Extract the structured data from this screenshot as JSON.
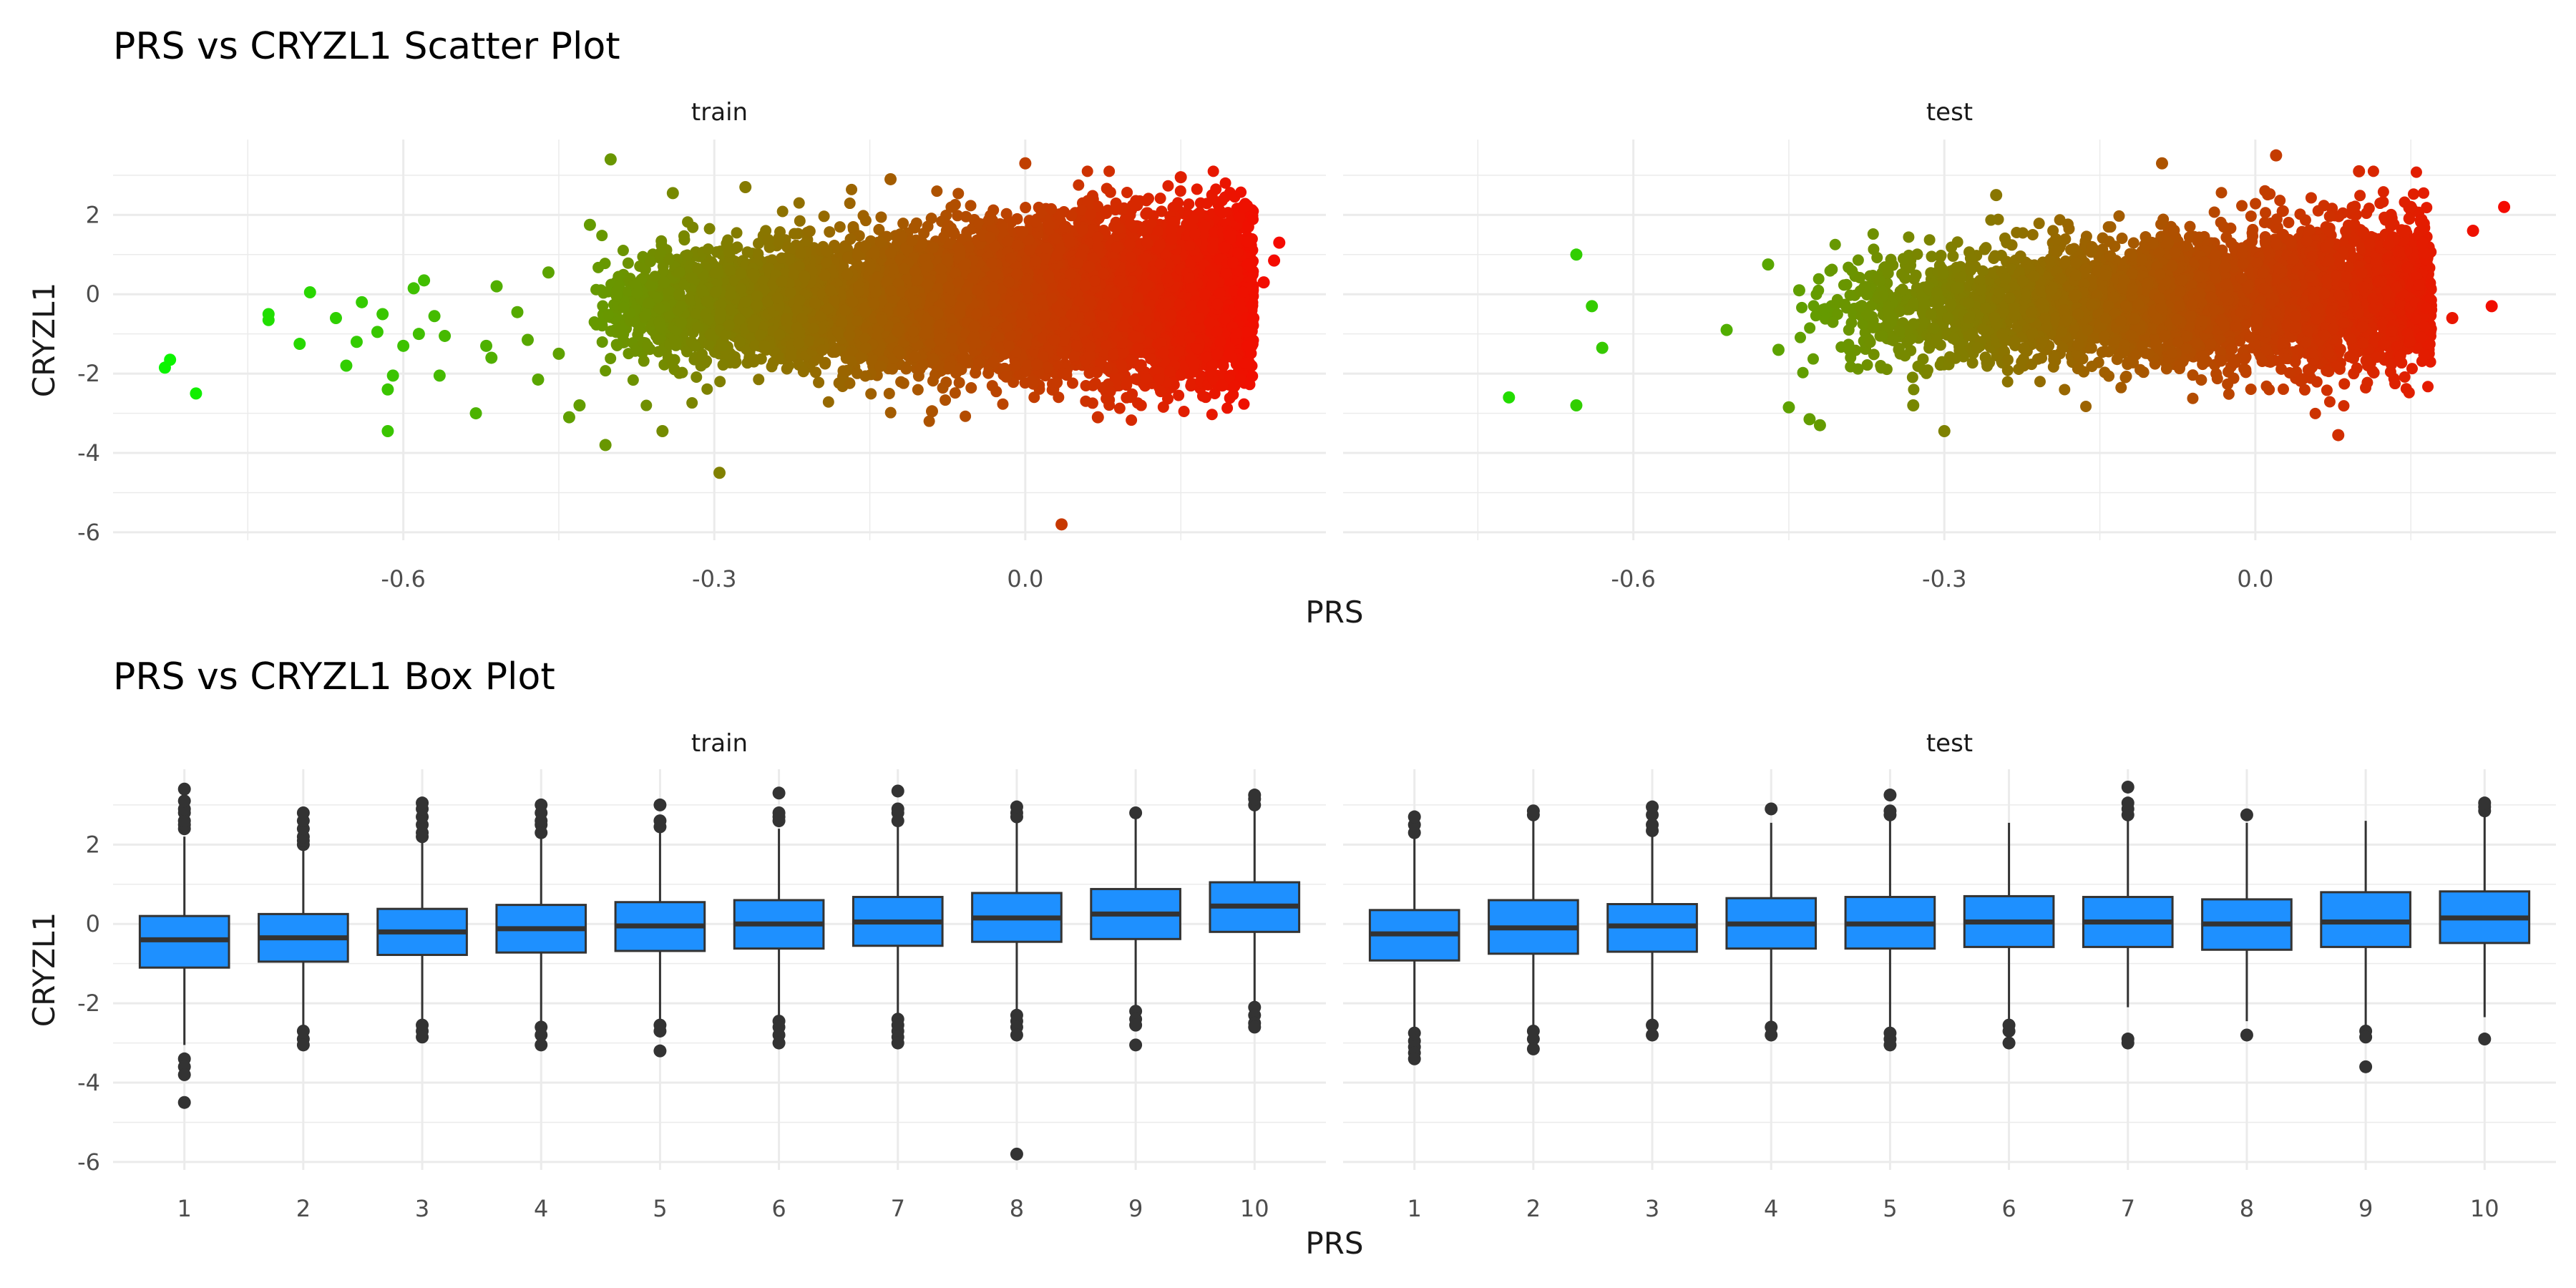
{
  "chart_data": [
    {
      "type": "scatter",
      "title": "PRS vs CRYZL1 Scatter Plot",
      "xlabel": "PRS",
      "ylabel": "CRYZL1",
      "y_ticks": [
        "2",
        "0",
        "-2",
        "-4",
        "-6"
      ],
      "y_tick_values": [
        2,
        0,
        -2,
        -4,
        -6
      ],
      "ylim": [
        -6.2,
        3.9
      ],
      "x_ticks": [
        "-0.6",
        "-0.3",
        "0.0"
      ],
      "x_tick_values": [
        -0.6,
        -0.3,
        0.0
      ],
      "grid": true,
      "color_scale": {
        "low": "#00ff00",
        "high": "#ff0000",
        "mapped_to": "PRS"
      },
      "panels": [
        {
          "name": "train",
          "xlim": [
            -0.88,
            0.29
          ],
          "cloud": {
            "x_range": [
              -0.42,
              0.22
            ],
            "y_sd": 0.95,
            "approx_points": 9000
          },
          "points": [
            {
              "x": -0.83,
              "y": -1.85
            },
            {
              "x": -0.825,
              "y": -1.65
            },
            {
              "x": -0.8,
              "y": -2.5
            },
            {
              "x": -0.73,
              "y": -0.5
            },
            {
              "x": -0.73,
              "y": -0.65
            },
            {
              "x": -0.69,
              "y": 0.05
            },
            {
              "x": -0.7,
              "y": -1.25
            },
            {
              "x": -0.665,
              "y": -0.6
            },
            {
              "x": -0.655,
              "y": -1.8
            },
            {
              "x": -0.645,
              "y": -1.2
            },
            {
              "x": -0.64,
              "y": -0.2
            },
            {
              "x": -0.625,
              "y": -0.95
            },
            {
              "x": -0.62,
              "y": -0.5
            },
            {
              "x": -0.615,
              "y": -2.4
            },
            {
              "x": -0.615,
              "y": -3.45
            },
            {
              "x": -0.61,
              "y": -2.05
            },
            {
              "x": -0.6,
              "y": -1.3
            },
            {
              "x": -0.59,
              "y": 0.15
            },
            {
              "x": -0.58,
              "y": 0.35
            },
            {
              "x": -0.585,
              "y": -1.0
            },
            {
              "x": -0.57,
              "y": -0.55
            },
            {
              "x": -0.56,
              "y": -1.05
            },
            {
              "x": -0.565,
              "y": -2.05
            },
            {
              "x": -0.53,
              "y": -3.0
            },
            {
              "x": -0.52,
              "y": -1.3
            },
            {
              "x": -0.515,
              "y": -1.6
            },
            {
              "x": -0.51,
              "y": 0.2
            },
            {
              "x": -0.49,
              "y": -0.45
            },
            {
              "x": -0.48,
              "y": -1.15
            },
            {
              "x": -0.47,
              "y": -2.15
            },
            {
              "x": -0.46,
              "y": 0.55
            },
            {
              "x": -0.45,
              "y": -1.5
            },
            {
              "x": -0.44,
              "y": -3.1
            },
            {
              "x": -0.43,
              "y": -2.8
            },
            {
              "x": -0.42,
              "y": 1.75
            },
            {
              "x": -0.4,
              "y": 3.4
            },
            {
              "x": -0.405,
              "y": -3.8
            },
            {
              "x": -0.35,
              "y": -3.45
            },
            {
              "x": -0.34,
              "y": 2.55
            },
            {
              "x": -0.295,
              "y": -4.5
            },
            {
              "x": -0.27,
              "y": 2.7
            },
            {
              "x": -0.13,
              "y": 2.9
            },
            {
              "x": -0.09,
              "y": -2.95
            },
            {
              "x": 0.0,
              "y": 3.3
            },
            {
              "x": 0.035,
              "y": -5.8
            },
            {
              "x": 0.07,
              "y": -3.1
            },
            {
              "x": 0.15,
              "y": 2.95
            },
            {
              "x": 0.19,
              "y": -2.3
            },
            {
              "x": 0.21,
              "y": 2.2
            },
            {
              "x": 0.215,
              "y": -1.3
            },
            {
              "x": 0.23,
              "y": 0.3
            },
            {
              "x": 0.24,
              "y": 0.85
            },
            {
              "x": 0.245,
              "y": 1.3
            },
            {
              "x": 0.22,
              "y": -0.6
            }
          ]
        },
        {
          "name": "test",
          "xlim": [
            -0.88,
            0.29
          ],
          "cloud": {
            "x_range": [
              -0.44,
              0.17
            ],
            "y_sd": 0.9,
            "approx_points": 4000
          },
          "points": [
            {
              "x": -0.72,
              "y": -2.6
            },
            {
              "x": -0.655,
              "y": 1.0
            },
            {
              "x": -0.655,
              "y": -2.8
            },
            {
              "x": -0.64,
              "y": -0.3
            },
            {
              "x": -0.63,
              "y": -1.35
            },
            {
              "x": -0.51,
              "y": -0.9
            },
            {
              "x": -0.47,
              "y": 0.75
            },
            {
              "x": -0.46,
              "y": -1.4
            },
            {
              "x": -0.45,
              "y": -2.85
            },
            {
              "x": -0.44,
              "y": 0.1
            },
            {
              "x": -0.43,
              "y": -3.15
            },
            {
              "x": -0.42,
              "y": -3.3
            },
            {
              "x": -0.33,
              "y": -2.8
            },
            {
              "x": -0.3,
              "y": -3.45
            },
            {
              "x": -0.25,
              "y": 2.5
            },
            {
              "x": -0.09,
              "y": 3.3
            },
            {
              "x": 0.02,
              "y": 3.5
            },
            {
              "x": 0.08,
              "y": -3.55
            },
            {
              "x": 0.1,
              "y": 3.1
            },
            {
              "x": 0.15,
              "y": 2.2
            },
            {
              "x": 0.19,
              "y": -0.6
            },
            {
              "x": 0.21,
              "y": 1.6
            },
            {
              "x": 0.228,
              "y": -0.3
            },
            {
              "x": 0.24,
              "y": 2.2
            }
          ]
        }
      ]
    },
    {
      "type": "box",
      "title": "PRS vs CRYZL1 Box Plot",
      "xlabel": "PRS",
      "ylabel": "CRYZL1",
      "categories": [
        "1",
        "2",
        "3",
        "4",
        "5",
        "6",
        "7",
        "8",
        "9",
        "10"
      ],
      "y_ticks": [
        "2",
        "0",
        "-2",
        "-4",
        "-6"
      ],
      "y_tick_values": [
        2,
        0,
        -2,
        -4,
        -6
      ],
      "ylim": [
        -6.2,
        3.9
      ],
      "grid": true,
      "box_color": "#1e90ff",
      "line_color": "#333333",
      "panels": [
        {
          "name": "train",
          "boxes": [
            {
              "q1": -1.1,
              "median": -0.4,
              "q3": 0.2,
              "low": -3.05,
              "high": 2.2,
              "outliers": [
                2.4,
                2.5,
                2.6,
                2.8,
                2.9,
                3.1,
                3.4,
                -3.4,
                -3.6,
                -3.8,
                -4.5
              ]
            },
            {
              "q1": -0.95,
              "median": -0.35,
              "q3": 0.25,
              "low": -2.6,
              "high": 1.9,
              "outliers": [
                2.0,
                2.1,
                2.2,
                2.4,
                2.6,
                2.8,
                -2.7,
                -2.9,
                -3.05
              ]
            },
            {
              "q1": -0.78,
              "median": -0.2,
              "q3": 0.38,
              "low": -2.45,
              "high": 2.1,
              "outliers": [
                2.2,
                2.3,
                2.5,
                2.7,
                2.9,
                3.05,
                -2.55,
                -2.7,
                -2.85
              ]
            },
            {
              "q1": -0.72,
              "median": -0.12,
              "q3": 0.48,
              "low": -2.5,
              "high": 2.2,
              "outliers": [
                2.3,
                2.5,
                2.6,
                2.8,
                3.0,
                -2.6,
                -2.8,
                -3.05
              ]
            },
            {
              "q1": -0.68,
              "median": -0.05,
              "q3": 0.55,
              "low": -2.45,
              "high": 2.3,
              "outliers": [
                2.45,
                2.6,
                3.0,
                -2.55,
                -2.7,
                -3.2
              ]
            },
            {
              "q1": -0.62,
              "median": 0.0,
              "q3": 0.6,
              "low": -2.4,
              "high": 2.4,
              "outliers": [
                2.6,
                2.7,
                2.8,
                3.3,
                -2.45,
                -2.6,
                -2.8,
                -3.0
              ]
            },
            {
              "q1": -0.55,
              "median": 0.05,
              "q3": 0.68,
              "low": -2.3,
              "high": 2.45,
              "outliers": [
                2.6,
                2.8,
                2.9,
                3.35,
                -2.4,
                -2.55,
                -2.7,
                -2.85,
                -3.0
              ]
            },
            {
              "q1": -0.45,
              "median": 0.15,
              "q3": 0.78,
              "low": -2.2,
              "high": 2.55,
              "outliers": [
                2.7,
                2.8,
                2.95,
                -2.3,
                -2.45,
                -2.6,
                -2.8,
                -5.8
              ]
            },
            {
              "q1": -0.38,
              "median": 0.25,
              "q3": 0.88,
              "low": -2.15,
              "high": 2.65,
              "outliers": [
                2.8,
                -2.2,
                -2.4,
                -2.55,
                -3.05
              ]
            },
            {
              "q1": -0.2,
              "median": 0.45,
              "q3": 1.05,
              "low": -2.0,
              "high": 2.95,
              "outliers": [
                3.0,
                3.15,
                3.25,
                -2.1,
                -2.3,
                -2.5,
                -2.6
              ]
            }
          ]
        },
        {
          "name": "test",
          "boxes": [
            {
              "q1": -0.92,
              "median": -0.25,
              "q3": 0.35,
              "low": -2.6,
              "high": 2.15,
              "outliers": [
                2.3,
                2.5,
                2.7,
                -2.75,
                -2.95,
                -3.1,
                -3.25,
                -3.4
              ]
            },
            {
              "q1": -0.75,
              "median": -0.1,
              "q3": 0.6,
              "low": -2.55,
              "high": 2.6,
              "outliers": [
                2.75,
                2.85,
                -2.7,
                -2.9,
                -3.15
              ]
            },
            {
              "q1": -0.7,
              "median": -0.05,
              "q3": 0.5,
              "low": -2.4,
              "high": 2.2,
              "outliers": [
                2.35,
                2.5,
                2.75,
                2.95,
                -2.55,
                -2.8
              ]
            },
            {
              "q1": -0.62,
              "median": 0.0,
              "q3": 0.65,
              "low": -2.5,
              "high": 2.55,
              "outliers": [
                2.9,
                -2.6,
                -2.8
              ]
            },
            {
              "q1": -0.62,
              "median": 0.0,
              "q3": 0.68,
              "low": -2.6,
              "high": 2.6,
              "outliers": [
                2.75,
                2.85,
                3.25,
                -2.75,
                -2.9,
                -3.05
              ]
            },
            {
              "q1": -0.58,
              "median": 0.05,
              "q3": 0.7,
              "low": -2.45,
              "high": 2.55,
              "outliers": [
                -2.55,
                -2.7,
                -3.0
              ]
            },
            {
              "q1": -0.58,
              "median": 0.05,
              "q3": 0.68,
              "low": -2.1,
              "high": 2.6,
              "outliers": [
                2.75,
                2.9,
                3.05,
                3.45,
                -2.9,
                -3.0
              ]
            },
            {
              "q1": -0.65,
              "median": 0.0,
              "q3": 0.62,
              "low": -2.45,
              "high": 2.55,
              "outliers": [
                2.75,
                -2.8
              ]
            },
            {
              "q1": -0.58,
              "median": 0.05,
              "q3": 0.8,
              "low": -2.55,
              "high": 2.6,
              "outliers": [
                -2.7,
                -2.85,
                -3.6
              ]
            },
            {
              "q1": -0.48,
              "median": 0.15,
              "q3": 0.82,
              "low": -2.35,
              "high": 2.7,
              "outliers": [
                2.85,
                2.95,
                3.05,
                -2.9
              ]
            }
          ]
        }
      ]
    }
  ]
}
